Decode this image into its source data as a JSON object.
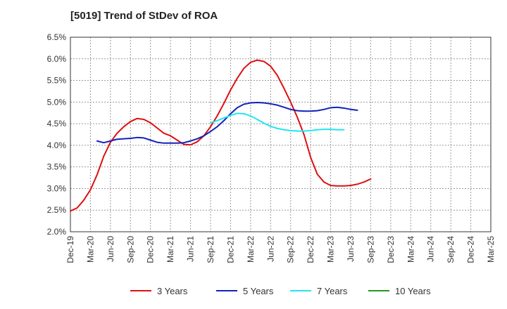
{
  "chart_data": {
    "type": "line",
    "title": "[5019]  Trend of StDev of ROA",
    "xlabel": "",
    "ylabel": "",
    "ylim": [
      0.02,
      0.065
    ],
    "y_ticks": [
      0.065,
      0.06,
      0.055,
      0.05,
      0.045,
      0.04,
      0.035,
      0.03,
      0.025,
      0.02
    ],
    "y_tick_labels": [
      "6.5%",
      "6.0%",
      "5.5%",
      "5.0%",
      "4.5%",
      "4.0%",
      "3.5%",
      "3.0%",
      "2.5%",
      "2.0%"
    ],
    "x_tick_labels": [
      "Dec-19",
      "Mar-20",
      "Jun-20",
      "Sep-20",
      "Dec-20",
      "Mar-21",
      "Jun-21",
      "Sep-21",
      "Dec-21",
      "Mar-22",
      "Jun-22",
      "Sep-22",
      "Dec-22",
      "Mar-23",
      "Jun-23",
      "Sep-23",
      "Dec-23",
      "Mar-24",
      "Jun-24",
      "Sep-24",
      "Dec-24",
      "Mar-25"
    ],
    "grid": true,
    "legend_position": "bottom",
    "series": [
      {
        "name": "3 Years",
        "color": "#dd1111",
        "start_index": 0,
        "values": [
          0.0248,
          0.0255,
          0.0273,
          0.0297,
          0.0332,
          0.0375,
          0.0407,
          0.0428,
          0.0443,
          0.0455,
          0.0462,
          0.046,
          0.0452,
          0.044,
          0.0428,
          0.0422,
          0.0412,
          0.0402,
          0.0401,
          0.0408,
          0.0422,
          0.0443,
          0.0468,
          0.0497,
          0.0528,
          0.0555,
          0.0578,
          0.0592,
          0.0597,
          0.0594,
          0.0583,
          0.0562,
          0.0532,
          0.05,
          0.0465,
          0.0425,
          0.0372,
          0.0333,
          0.0315,
          0.0307,
          0.0306,
          0.0306,
          0.0307,
          0.031,
          0.0315,
          0.0322
        ]
      },
      {
        "name": "5 Years",
        "color": "#1122bb",
        "start_index": 4,
        "values": [
          0.041,
          0.0406,
          0.041,
          0.0414,
          0.0415,
          0.0416,
          0.0418,
          0.0417,
          0.0412,
          0.0407,
          0.0405,
          0.0405,
          0.0405,
          0.0406,
          0.041,
          0.0415,
          0.0422,
          0.0432,
          0.0443,
          0.0457,
          0.0473,
          0.0487,
          0.0495,
          0.0498,
          0.0499,
          0.0498,
          0.0496,
          0.0493,
          0.0488,
          0.0483,
          0.048,
          0.0479,
          0.0479,
          0.048,
          0.0483,
          0.0487,
          0.0488,
          0.0486,
          0.0483,
          0.0481
        ]
      },
      {
        "name": "7 Years",
        "color": "#22e5ee",
        "start_index": 21,
        "values": [
          0.0452,
          0.0457,
          0.0463,
          0.0469,
          0.0474,
          0.0473,
          0.0468,
          0.046,
          0.0451,
          0.0444,
          0.0439,
          0.0436,
          0.0434,
          0.0433,
          0.0433,
          0.0434,
          0.0436,
          0.0437,
          0.0437,
          0.0436,
          0.0436
        ]
      },
      {
        "name": "10 Years",
        "color": "#229922",
        "start_index": 0,
        "values": []
      }
    ]
  }
}
